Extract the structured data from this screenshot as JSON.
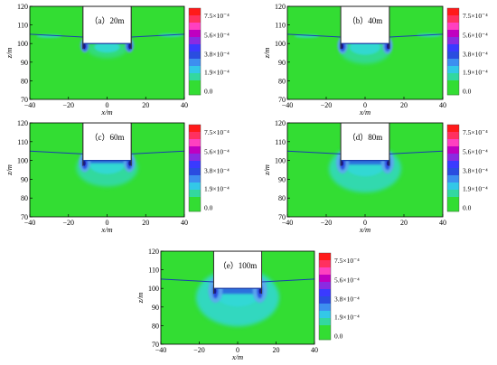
{
  "chart_data": [
    {
      "type": "heatmap",
      "title": "（a）20m",
      "xlabel": "x/m",
      "ylabel": "z/m",
      "xlim": [
        -40,
        40
      ],
      "ylim": [
        70,
        120
      ],
      "xticks": [
        "−40",
        "−20",
        "0",
        "20",
        "40"
      ],
      "yticks": [
        "70",
        "80",
        "90",
        "100",
        "110",
        "120"
      ],
      "excavation_depth_m": 20,
      "colorbar": {
        "ticks": [
          "7.5×10⁻⁴",
          "5.6×10⁻⁴",
          "3.8×10⁻⁴",
          "1.9×10⁻⁴",
          "0.0"
        ]
      }
    },
    {
      "type": "heatmap",
      "title": "（b）40m",
      "xlabel": "x/m",
      "ylabel": "z/m",
      "xlim": [
        -40,
        40
      ],
      "ylim": [
        70,
        120
      ],
      "xticks": [
        "−40",
        "−20",
        "0",
        "20",
        "40"
      ],
      "yticks": [
        "70",
        "80",
        "90",
        "100",
        "110",
        "120"
      ],
      "excavation_depth_m": 40,
      "colorbar": {
        "ticks": [
          "7.5×10⁻⁴",
          "5.6×10⁻⁴",
          "3.8×10⁻⁴",
          "1.9×10⁻⁴",
          "0.0"
        ]
      }
    },
    {
      "type": "heatmap",
      "title": "（c）60m",
      "xlabel": "x/m",
      "ylabel": "z/m",
      "xlim": [
        -40,
        40
      ],
      "ylim": [
        70,
        120
      ],
      "xticks": [
        "−40",
        "−20",
        "0",
        "20",
        "40"
      ],
      "yticks": [
        "70",
        "80",
        "90",
        "100",
        "110",
        "120"
      ],
      "excavation_depth_m": 60,
      "colorbar": {
        "ticks": [
          "7.5×10⁻⁴",
          "5.6×10⁻⁴",
          "3.8×10⁻⁴",
          "1.9×10⁻⁴",
          "0.0"
        ]
      }
    },
    {
      "type": "heatmap",
      "title": "（d）80m",
      "xlabel": "x/m",
      "ylabel": "z/m",
      "xlim": [
        -40,
        40
      ],
      "ylim": [
        70,
        120
      ],
      "xticks": [
        "−40",
        "−20",
        "0",
        "20",
        "40"
      ],
      "yticks": [
        "70",
        "80",
        "90",
        "100",
        "110",
        "120"
      ],
      "excavation_depth_m": 80,
      "colorbar": {
        "ticks": [
          "7.5×10⁻⁴",
          "5.6×10⁻⁴",
          "3.8×10⁻⁴",
          "1.9×10⁻⁴",
          "0.0"
        ]
      }
    },
    {
      "type": "heatmap",
      "title": "（e）100m",
      "xlabel": "x/m",
      "ylabel": "z/m",
      "xlim": [
        -40,
        40
      ],
      "ylim": [
        70,
        120
      ],
      "xticks": [
        "−40",
        "−20",
        "0",
        "20",
        "40"
      ],
      "yticks": [
        "70",
        "80",
        "90",
        "100",
        "110",
        "120"
      ],
      "excavation_depth_m": 100,
      "colorbar": {
        "ticks": [
          "7.5×10⁻⁴",
          "5.6×10⁻⁴",
          "3.8×10⁻⁴",
          "1.9×10⁻⁴",
          "0.0"
        ]
      }
    }
  ],
  "colors": {
    "background": "#33dd33",
    "cyan": "#33d8d8",
    "light_blue": "#5fa7f0",
    "blue": "#2a4de0",
    "dark_blue": "#1a1a8c",
    "magenta": "#c000c0",
    "red": "#ff1a1a",
    "excavation": "#ffffff"
  }
}
